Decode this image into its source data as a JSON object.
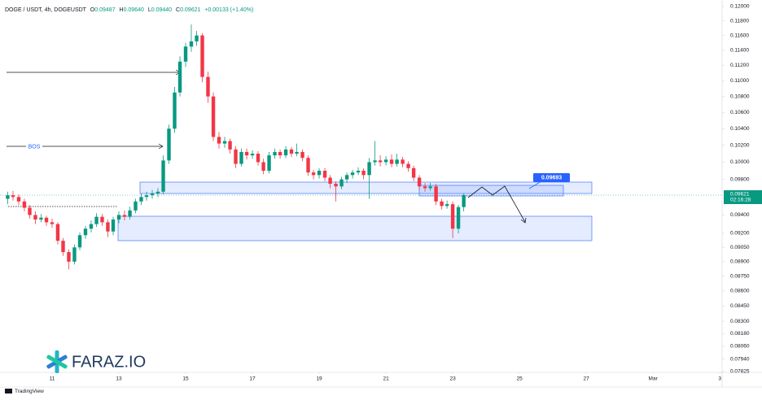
{
  "header": {
    "symbol": "DOGE / USDT, 4h, DOGEUSDT",
    "ohlc": [
      {
        "label": "O",
        "value": "0.09487"
      },
      {
        "label": "H",
        "value": "0.09640"
      },
      {
        "label": "L",
        "value": "0.09440"
      },
      {
        "label": "C",
        "value": "0.09621"
      }
    ],
    "change": "+0.00133 (+1.40%)"
  },
  "chart_data": {
    "type": "candlestick",
    "log_scale": true,
    "grid": false,
    "up_color": "#089981",
    "down_color": "#f23645",
    "x": [
      9.67,
      9.83,
      10,
      10.17,
      10.33,
      10.5,
      10.67,
      10.83,
      11,
      11.17,
      11.33,
      11.5,
      11.67,
      11.83,
      12,
      12.17,
      12.33,
      12.5,
      12.67,
      12.83,
      13,
      13.17,
      13.33,
      13.5,
      13.67,
      13.83,
      14,
      14.17,
      14.33,
      14.5,
      14.67,
      14.83,
      15,
      15.17,
      15.33,
      15.5,
      15.67,
      15.83,
      16,
      16.17,
      16.33,
      16.5,
      16.67,
      16.83,
      17,
      17.17,
      17.33,
      17.5,
      17.67,
      17.83,
      18,
      18.17,
      18.33,
      18.5,
      18.67,
      18.83,
      19,
      19.17,
      19.33,
      19.5,
      19.67,
      19.83,
      20,
      20.17,
      20.33,
      20.5,
      20.67,
      20.83,
      21,
      21.17,
      21.33,
      21.5,
      21.67,
      21.83,
      22,
      22.17,
      22.33,
      22.5,
      22.67,
      22.83,
      23,
      23.17,
      23.33
    ],
    "open": [
      0.0958,
      0.0962,
      0.096,
      0.0955,
      0.0948,
      0.094,
      0.0935,
      0.0937,
      0.0932,
      0.093,
      0.0912,
      0.09,
      0.089,
      0.0905,
      0.0918,
      0.0925,
      0.093,
      0.0938,
      0.0932,
      0.0922,
      0.0935,
      0.094,
      0.0938,
      0.0945,
      0.0955,
      0.096,
      0.0962,
      0.0964,
      0.0966,
      0.1002,
      0.104,
      0.1085,
      0.1125,
      0.1145,
      0.1152,
      0.116,
      0.1105,
      0.108,
      0.103,
      0.1022,
      0.1025,
      0.1015,
      0.0998,
      0.1012,
      0.1008,
      0.101,
      0.1,
      0.099,
      0.1008,
      0.1012,
      0.1008,
      0.1015,
      0.101,
      0.1012,
      0.1005,
      0.0988,
      0.0985,
      0.099,
      0.0982,
      0.0975,
      0.0972,
      0.098,
      0.0985,
      0.0988,
      0.099,
      0.0985,
      0.1,
      0.1002,
      0.1,
      0.1003,
      0.0998,
      0.1003,
      0.0998,
      0.0993,
      0.0982,
      0.0972,
      0.097,
      0.0972,
      0.0955,
      0.095,
      0.0952,
      0.0925,
      0.09487
    ],
    "high": [
      0.0966,
      0.0967,
      0.0963,
      0.0958,
      0.0951,
      0.0944,
      0.0941,
      0.0939,
      0.0936,
      0.0932,
      0.0915,
      0.0903,
      0.0908,
      0.0921,
      0.0928,
      0.0934,
      0.0942,
      0.0941,
      0.0935,
      0.0938,
      0.0944,
      0.0945,
      0.0949,
      0.0958,
      0.0964,
      0.0966,
      0.0968,
      0.097,
      0.1008,
      0.1045,
      0.1092,
      0.1132,
      0.115,
      0.1175,
      0.1166,
      0.1163,
      0.1112,
      0.1085,
      0.1036,
      0.103,
      0.1028,
      0.1019,
      0.1016,
      0.1016,
      0.1014,
      0.1013,
      0.1004,
      0.1012,
      0.1016,
      0.1015,
      0.1019,
      0.1018,
      0.1022,
      0.1015,
      0.1008,
      0.0991,
      0.0993,
      0.0993,
      0.0985,
      0.0978,
      0.0983,
      0.0988,
      0.0991,
      0.0994,
      0.0993,
      0.1005,
      0.1025,
      0.1008,
      0.1007,
      0.1009,
      0.101,
      0.1006,
      0.1001,
      0.0996,
      0.0985,
      0.0976,
      0.0976,
      0.0975,
      0.0958,
      0.0956,
      0.0955,
      0.0951,
      0.0964
    ],
    "low": [
      0.0952,
      0.0956,
      0.0951,
      0.0944,
      0.0936,
      0.093,
      0.0932,
      0.0928,
      0.0926,
      0.0908,
      0.0896,
      0.0882,
      0.0887,
      0.0902,
      0.0914,
      0.0921,
      0.0927,
      0.0928,
      0.0916,
      0.0918,
      0.0931,
      0.0934,
      0.0935,
      0.0942,
      0.0951,
      0.0956,
      0.0958,
      0.096,
      0.0963,
      0.0998,
      0.1035,
      0.108,
      0.1118,
      0.1138,
      0.1146,
      0.1098,
      0.1072,
      0.1025,
      0.1016,
      0.1017,
      0.101,
      0.0993,
      0.0995,
      0.1003,
      0.1004,
      0.0996,
      0.0986,
      0.0987,
      0.1004,
      0.1004,
      0.1005,
      0.1006,
      0.1007,
      0.1001,
      0.0984,
      0.098,
      0.0981,
      0.0978,
      0.097,
      0.0955,
      0.0969,
      0.0976,
      0.0981,
      0.0985,
      0.098,
      0.0958,
      0.0996,
      0.0995,
      0.0996,
      0.0994,
      0.0995,
      0.0994,
      0.0989,
      0.0978,
      0.0968,
      0.0966,
      0.0967,
      0.0951,
      0.0946,
      0.0947,
      0.0915,
      0.092,
      0.0944
    ],
    "close": [
      0.0962,
      0.096,
      0.0955,
      0.0948,
      0.094,
      0.0935,
      0.0937,
      0.0932,
      0.093,
      0.0912,
      0.09,
      0.089,
      0.0905,
      0.0918,
      0.0925,
      0.093,
      0.0938,
      0.0932,
      0.0922,
      0.0935,
      0.094,
      0.0938,
      0.0945,
      0.0955,
      0.096,
      0.0962,
      0.0964,
      0.0966,
      0.1002,
      0.104,
      0.1085,
      0.1125,
      0.1145,
      0.1152,
      0.116,
      0.1105,
      0.108,
      0.103,
      0.1022,
      0.1025,
      0.1015,
      0.0998,
      0.1012,
      0.1008,
      0.101,
      0.1,
      0.099,
      0.1008,
      0.1012,
      0.1008,
      0.1015,
      0.101,
      0.1012,
      0.1005,
      0.0988,
      0.0985,
      0.099,
      0.0982,
      0.0975,
      0.0972,
      0.098,
      0.0985,
      0.0988,
      0.099,
      0.0985,
      0.1,
      0.1002,
      0.1,
      0.1003,
      0.0998,
      0.1003,
      0.0998,
      0.0993,
      0.0982,
      0.0972,
      0.097,
      0.0972,
      0.0955,
      0.095,
      0.0952,
      0.0925,
      0.09487,
      0.09621
    ],
    "xlim": [
      9.44,
      31.02
    ],
    "xticks": [
      11,
      13,
      15,
      17,
      19,
      21,
      23,
      25,
      27,
      {
        "value": 29,
        "label": "Mar"
      },
      {
        "value": 31,
        "label": "3"
      }
    ],
    "ylim": [
      0.07825,
      0.12
    ],
    "yticks": [
      {
        "value": 0.12,
        "label": "0.12000"
      },
      {
        "value": 0.118,
        "label": "0.11800"
      },
      {
        "value": 0.116,
        "label": "0.11600"
      },
      {
        "value": 0.114,
        "label": "0.11400"
      },
      {
        "value": 0.112,
        "label": "0.11200"
      },
      {
        "value": 0.11,
        "label": "0.11000"
      },
      {
        "value": 0.108,
        "label": "0.10800"
      },
      {
        "value": 0.106,
        "label": "0.10600"
      },
      {
        "value": 0.104,
        "label": "0.10400"
      },
      {
        "value": 0.102,
        "label": "0.10200"
      },
      {
        "value": 0.1,
        "label": "0.10000"
      },
      {
        "value": 0.098,
        "label": "0.09800"
      },
      {
        "value": 0.094,
        "label": "0.09400"
      },
      {
        "value": 0.092,
        "label": "0.09200"
      },
      {
        "value": 0.0905,
        "label": "0.09050"
      },
      {
        "value": 0.089,
        "label": "0.08900"
      },
      {
        "value": 0.0875,
        "label": "0.08750"
      },
      {
        "value": 0.086,
        "label": "0.08600"
      },
      {
        "value": 0.0845,
        "label": "0.08450"
      },
      {
        "value": 0.083,
        "label": "0.08300"
      },
      {
        "value": 0.0818,
        "label": "0.08180"
      },
      {
        "value": 0.0806,
        "label": "0.08060"
      },
      {
        "value": 0.0794,
        "label": "0.07940"
      },
      {
        "value": 0.07825,
        "label": "0.07825"
      }
    ],
    "price_label": "0.09621",
    "countdown": "02:16:28",
    "callout": "0.09693",
    "annotation": "BOS"
  },
  "brand": {
    "logo": "FARAZ.IO",
    "platform": "TradingView"
  }
}
